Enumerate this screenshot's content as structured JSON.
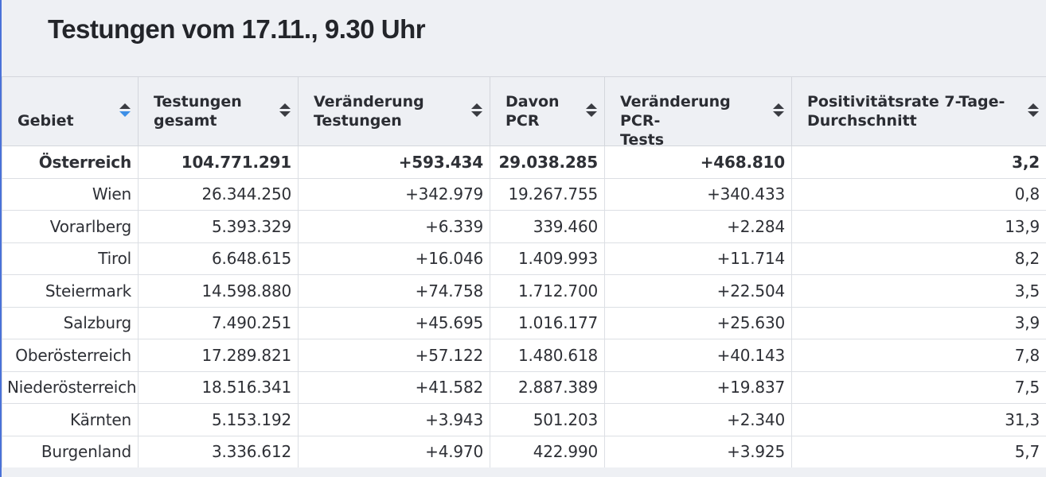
{
  "title": "Testungen vom 17.11., 9.30 Uhr",
  "table": {
    "headers": [
      "Gebiet",
      "Testungen\ngesamt",
      "Veränderung\nTestungen",
      "Davon\nPCR",
      "Veränderung PCR-\nTests",
      "Positivitätsrate 7-Tage-\nDurchschnitt"
    ],
    "sorted_column": "Gebiet",
    "sort_direction": "descending",
    "rows": [
      [
        "Österreich",
        "104.771.291",
        "+593.434",
        "29.038.285",
        "+468.810",
        "3,2"
      ],
      [
        "Wien",
        "26.344.250",
        "+342.979",
        "19.267.755",
        "+340.433",
        "0,8"
      ],
      [
        "Vorarlberg",
        "5.393.329",
        "+6.339",
        "339.460",
        "+2.284",
        "13,9"
      ],
      [
        "Tirol",
        "6.648.615",
        "+16.046",
        "1.409.993",
        "+11.714",
        "8,2"
      ],
      [
        "Steiermark",
        "14.598.880",
        "+74.758",
        "1.712.700",
        "+22.504",
        "3,5"
      ],
      [
        "Salzburg",
        "7.490.251",
        "+45.695",
        "1.016.177",
        "+25.630",
        "3,9"
      ],
      [
        "Oberösterreich",
        "17.289.821",
        "+57.122",
        "1.480.618",
        "+40.143",
        "7,8"
      ],
      [
        "Niederösterreich",
        "18.516.341",
        "+41.582",
        "2.887.389",
        "+19.837",
        "7,5"
      ],
      [
        "Kärnten",
        "5.153.192",
        "+3.943",
        "501.203",
        "+2.340",
        "31,3"
      ],
      [
        "Burgenland",
        "3.336.612",
        "+4.970",
        "422.990",
        "+3.925",
        "5,7"
      ]
    ]
  },
  "colors": {
    "background": "#eef0f4",
    "sort_active": "#3d8fe6",
    "accent_border": "#4a72d8"
  }
}
